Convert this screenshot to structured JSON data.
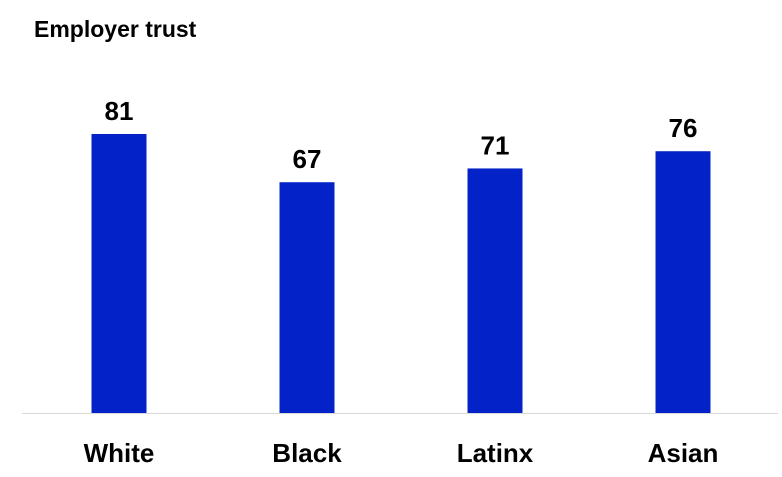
{
  "chart_data": {
    "type": "bar",
    "title": "Employer trust",
    "categories": [
      "White",
      "Black",
      "Latinx",
      "Asian"
    ],
    "values": [
      81,
      67,
      71,
      76
    ],
    "xlabel": "",
    "ylabel": "",
    "ylim": [
      0,
      81
    ],
    "grid": false,
    "legend": "none",
    "bar_color": "#0323C8",
    "axis_color": "#D9D9D9"
  }
}
